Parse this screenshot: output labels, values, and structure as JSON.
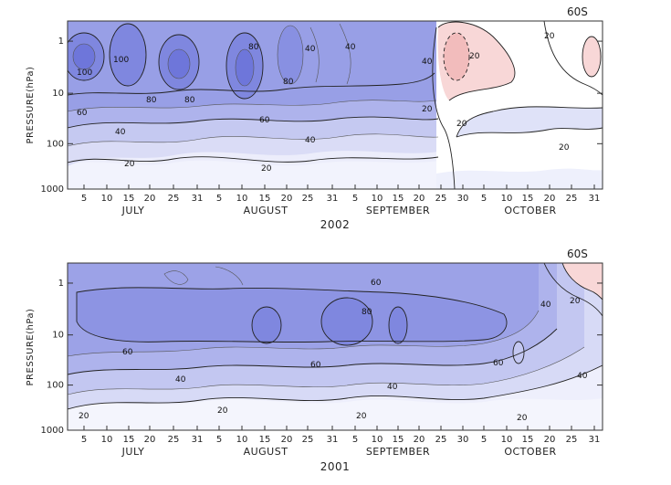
{
  "colors": {
    "strong_westerly": "#6f78dd",
    "moderate_westerly": "#9fa6ea",
    "weak_westerly": "#d4d7f5",
    "easterly": "#f6d0d0",
    "frame": "#333333"
  },
  "chart_data": [
    {
      "type": "heatmap",
      "title": "",
      "xlabel": "2002",
      "ylabel": "PRESSURE(hPa)",
      "corner_label": "60S",
      "y_scale": "log",
      "y_ticks": [
        "1",
        "10",
        "100",
        "1000"
      ],
      "x_day_ticks": [
        "5",
        "10",
        "15",
        "20",
        "25",
        "31",
        "5",
        "10",
        "15",
        "20",
        "25",
        "31",
        "5",
        "10",
        "15",
        "20",
        "25",
        "30",
        "5",
        "10",
        "15",
        "20",
        "25",
        "31"
      ],
      "x_months": [
        "JULY",
        "AUGUST",
        "SEPTEMBER",
        "OCTOBER"
      ],
      "contour_labels": [
        "100",
        "100",
        "80",
        "80",
        "80",
        "80",
        "60",
        "60",
        "40",
        "40",
        "40",
        "40",
        "40",
        "20",
        "20",
        "20",
        "20",
        "20",
        "20",
        "20"
      ],
      "grid": false
    },
    {
      "type": "heatmap",
      "title": "",
      "xlabel": "2001",
      "ylabel": "PRESSURE(hPa)",
      "corner_label": "60S",
      "y_scale": "log",
      "y_ticks": [
        "1",
        "10",
        "100",
        "1000"
      ],
      "x_day_ticks": [
        "5",
        "10",
        "15",
        "20",
        "25",
        "31",
        "5",
        "10",
        "15",
        "20",
        "25",
        "31",
        "5",
        "10",
        "15",
        "20",
        "25",
        "30",
        "5",
        "10",
        "15",
        "20",
        "25",
        "31"
      ],
      "x_months": [
        "JULY",
        "AUGUST",
        "SEPTEMBER",
        "OCTOBER"
      ],
      "contour_labels": [
        "80",
        "60",
        "60",
        "60",
        "60",
        "40",
        "40",
        "40",
        "40",
        "20",
        "20",
        "20",
        "20",
        "20"
      ],
      "grid": false
    }
  ]
}
